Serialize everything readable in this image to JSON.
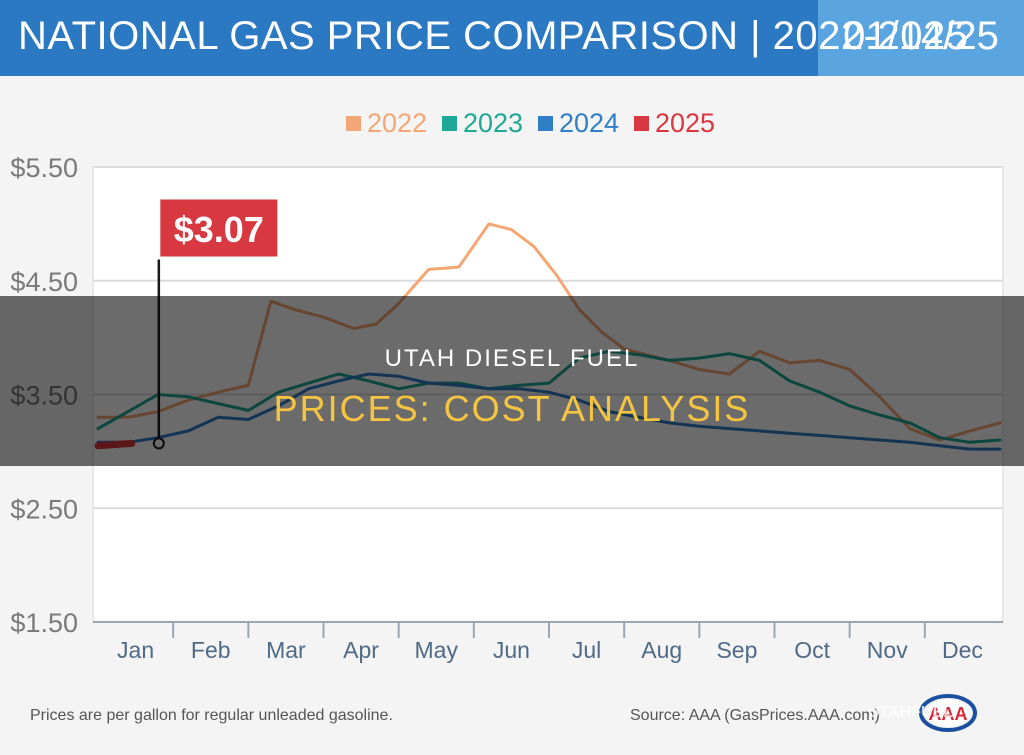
{
  "header": {
    "title": "NATIONAL GAS PRICE COMPARISON | 2022-2025",
    "date": "01/14/25"
  },
  "overlay": {
    "line1": "UTAH DIESEL FUEL",
    "line2": "PRICES: COST ANALYSIS"
  },
  "footer": {
    "note": "Prices are per gallon for regular unleaded gasoline.",
    "source": "Source: AAA (GasPrices.AAA.com)",
    "logo_label": "AAA",
    "watermark": "UTAHFUEL"
  },
  "chart_data": {
    "type": "line",
    "title": "",
    "xlabel": "",
    "ylabel": "",
    "ylim": [
      1.5,
      5.5
    ],
    "y_ticks": [
      "$5.50",
      "$4.50",
      "$3.50",
      "$2.50",
      "$1.50"
    ],
    "y_tick_values": [
      5.5,
      4.5,
      3.5,
      2.5,
      1.5
    ],
    "x_ticks": [
      "Jan",
      "Feb",
      "Mar",
      "Apr",
      "May",
      "Jun",
      "Jul",
      "Aug",
      "Sep",
      "Oct",
      "Nov",
      "Dec"
    ],
    "grid": true,
    "legend_position": "top-center",
    "series": [
      {
        "name": "2022",
        "color": "#f4a674",
        "x": [
          0,
          0.4,
          0.8,
          1.2,
          1.6,
          2.0,
          2.3,
          2.6,
          3.0,
          3.4,
          3.7,
          4.0,
          4.4,
          4.8,
          5.2,
          5.5,
          5.8,
          6.1,
          6.4,
          6.7,
          7.0,
          7.3,
          7.6,
          8.0,
          8.4,
          8.8,
          9.2,
          9.6,
          10.0,
          10.4,
          10.8,
          11.2,
          11.6,
          12.0
        ],
        "y": [
          3.3,
          3.3,
          3.35,
          3.45,
          3.52,
          3.58,
          4.32,
          4.25,
          4.18,
          4.08,
          4.12,
          4.3,
          4.6,
          4.62,
          5.0,
          4.95,
          4.8,
          4.55,
          4.25,
          4.05,
          3.9,
          3.85,
          3.8,
          3.72,
          3.68,
          3.88,
          3.78,
          3.8,
          3.72,
          3.48,
          3.2,
          3.1,
          3.18,
          3.25
        ]
      },
      {
        "name": "2023",
        "color": "#1fa896",
        "x": [
          0,
          0.4,
          0.8,
          1.2,
          1.6,
          2.0,
          2.4,
          2.8,
          3.2,
          3.6,
          4.0,
          4.4,
          4.8,
          5.2,
          5.6,
          6.0,
          6.4,
          6.8,
          7.2,
          7.6,
          8.0,
          8.4,
          8.8,
          9.2,
          9.6,
          10.0,
          10.4,
          10.8,
          11.2,
          11.6,
          12.0
        ],
        "y": [
          3.2,
          3.35,
          3.5,
          3.48,
          3.42,
          3.36,
          3.52,
          3.6,
          3.68,
          3.62,
          3.55,
          3.6,
          3.6,
          3.55,
          3.58,
          3.6,
          3.82,
          3.88,
          3.85,
          3.8,
          3.82,
          3.86,
          3.8,
          3.62,
          3.52,
          3.4,
          3.32,
          3.25,
          3.12,
          3.08,
          3.1
        ]
      },
      {
        "name": "2024",
        "color": "#2e7fc6",
        "x": [
          0,
          0.4,
          0.8,
          1.2,
          1.6,
          2.0,
          2.4,
          2.8,
          3.2,
          3.6,
          4.0,
          4.4,
          4.8,
          5.2,
          5.6,
          6.0,
          6.4,
          6.8,
          7.2,
          7.6,
          8.0,
          8.4,
          8.8,
          9.2,
          9.6,
          10.0,
          10.4,
          10.8,
          11.2,
          11.6,
          12.0
        ],
        "y": [
          3.08,
          3.08,
          3.12,
          3.18,
          3.3,
          3.28,
          3.4,
          3.55,
          3.62,
          3.68,
          3.66,
          3.6,
          3.58,
          3.55,
          3.55,
          3.52,
          3.45,
          3.35,
          3.3,
          3.25,
          3.22,
          3.2,
          3.18,
          3.16,
          3.14,
          3.12,
          3.1,
          3.08,
          3.05,
          3.02,
          3.02
        ]
      },
      {
        "name": "2025",
        "color": "#d8383f",
        "x": [
          0,
          0.45
        ],
        "y": [
          3.05,
          3.07
        ]
      }
    ],
    "annotations": [
      {
        "label": "$3.07",
        "x": 0.45,
        "y": 3.07,
        "series": "2025"
      }
    ]
  }
}
